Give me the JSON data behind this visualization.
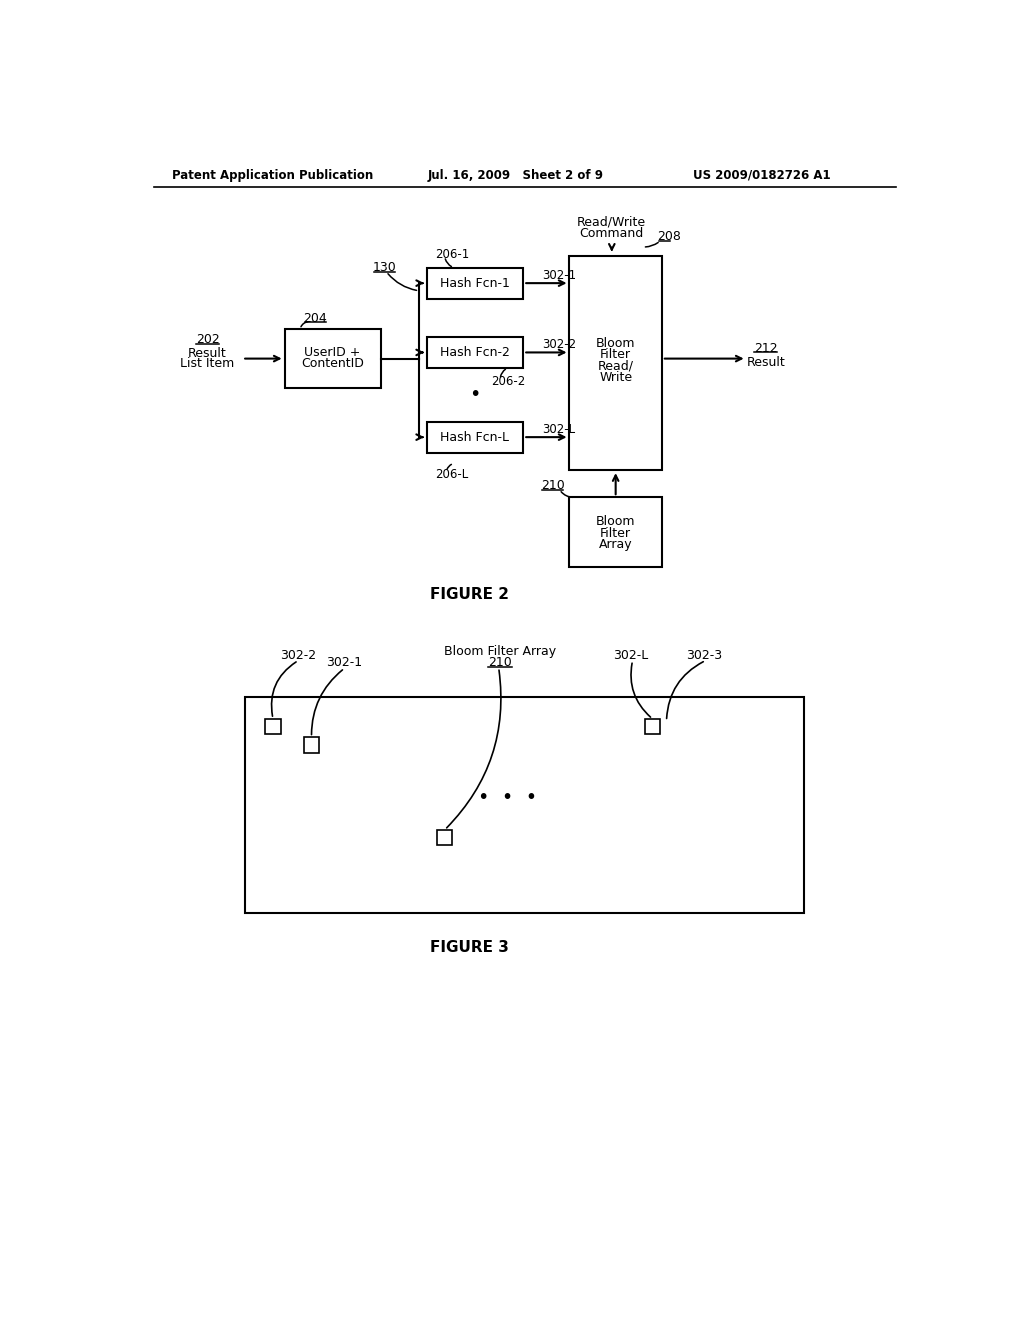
{
  "header_left": "Patent Application Publication",
  "header_mid": "Jul. 16, 2009   Sheet 2 of 9",
  "header_right": "US 2009/0182726 A1",
  "fig2_caption": "FIGURE 2",
  "fig3_caption": "FIGURE 3",
  "bg_color": "#ffffff",
  "text_color": "#000000"
}
